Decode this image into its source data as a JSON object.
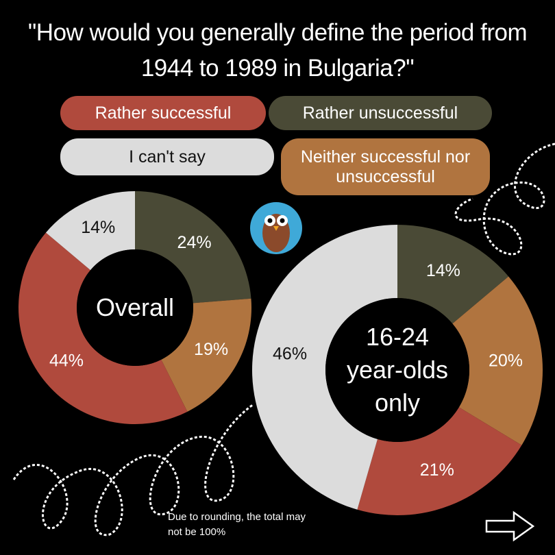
{
  "title": "\"How would you generally define the period from 1944 to 1989 in Bulgaria?\"",
  "legend": {
    "categories": [
      "Rather unsuccessful",
      "Neither successful nor unsuccessful",
      "Rather successful",
      "I can't say"
    ],
    "colors": [
      "#4a4a36",
      "#b0743f",
      "#b04a3d",
      "#dcdcdc"
    ]
  },
  "note": "Due to rounding, the total may not be 100%",
  "chart_data": [
    {
      "type": "pie",
      "center_label": "Overall",
      "values": [
        24,
        19,
        44,
        14
      ],
      "value_labels": [
        "24%",
        "19%",
        "44%",
        "14%"
      ]
    },
    {
      "type": "pie",
      "center_label": "16-24 year-olds only",
      "values": [
        14,
        20,
        21,
        46
      ],
      "value_labels": [
        "14%",
        "20%",
        "21%",
        "46%"
      ]
    }
  ]
}
